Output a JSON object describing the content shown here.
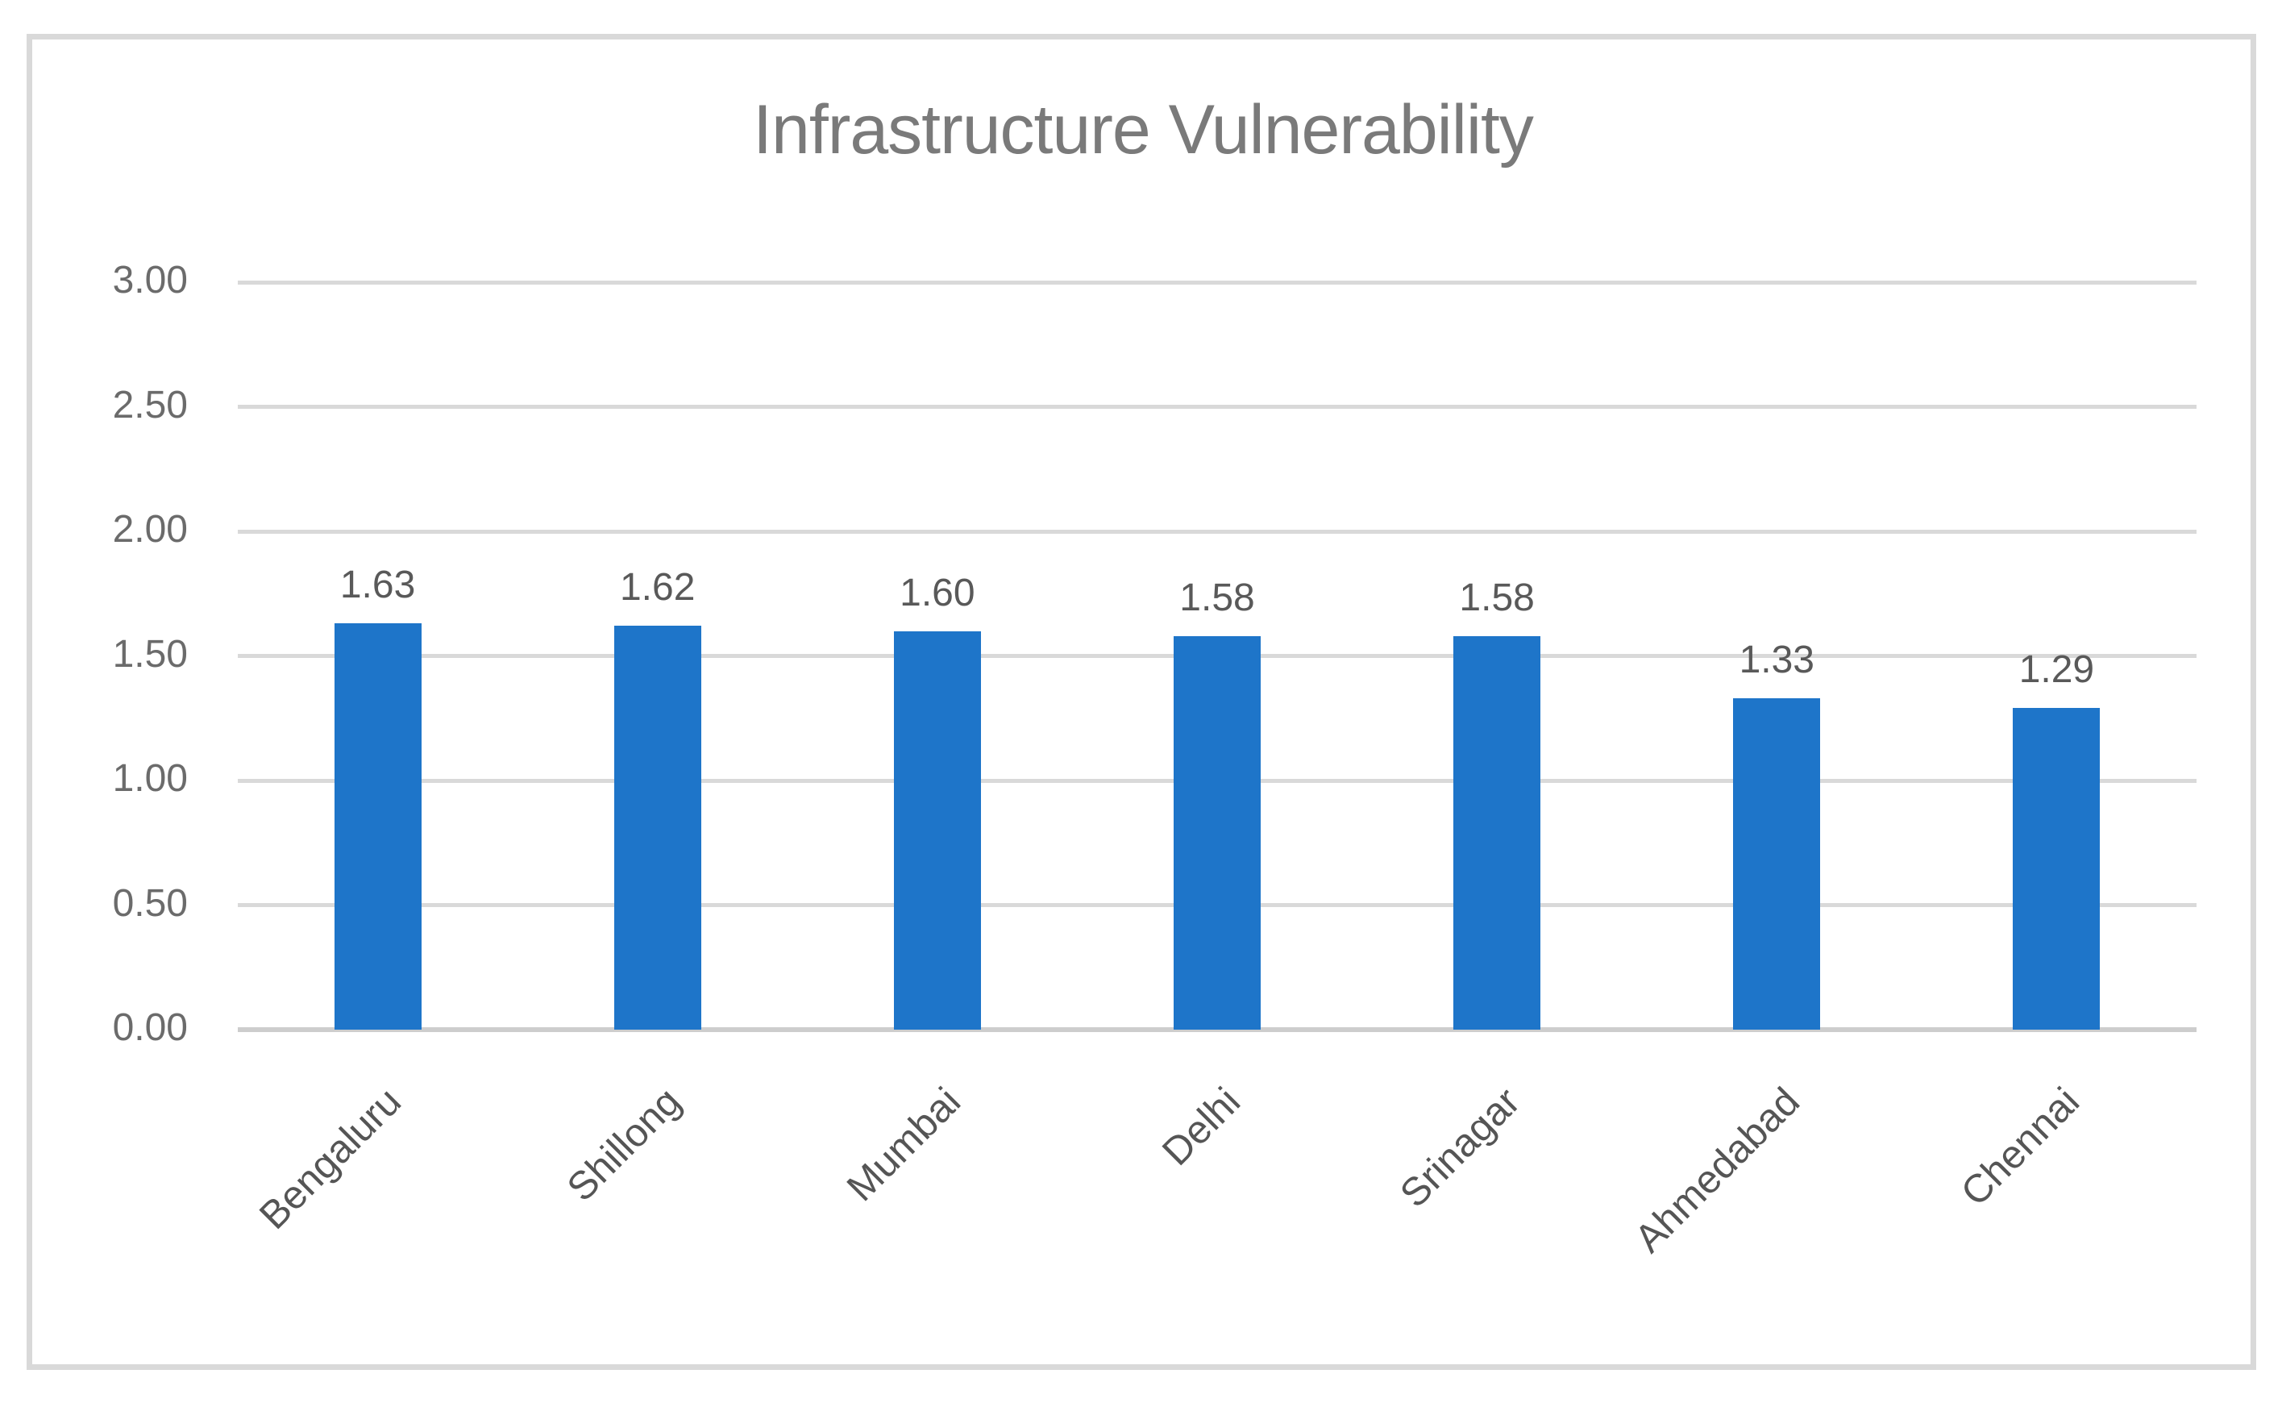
{
  "chart_data": {
    "type": "bar",
    "title": "Infrastructure Vulnerability",
    "categories": [
      "Bengaluru",
      "Shillong",
      "Mumbai",
      "Delhi",
      "Srinagar",
      "Ahmedabad",
      "Chennai"
    ],
    "values": [
      1.63,
      1.62,
      1.6,
      1.58,
      1.58,
      1.33,
      1.29
    ],
    "data_labels": [
      "1.63",
      "1.62",
      "1.60",
      "1.58",
      "1.58",
      "1.33",
      "1.29"
    ],
    "ylim": [
      0,
      3
    ],
    "ytick_step": 0.5,
    "ytick_labels": [
      "0.00",
      "0.50",
      "1.00",
      "1.50",
      "2.00",
      "2.50",
      "3.00"
    ],
    "xlabel": "",
    "ylabel": "",
    "grid": "on",
    "legend": "none",
    "colors": {
      "bar": "#1E75C9",
      "gridline": "#D9D9D9",
      "baseline": "#CDCDCD",
      "border": "#D9D9D9",
      "title": "#7A7A7A",
      "tick_label": "#6B6B6B",
      "data_label": "#595959",
      "category_label": "#555555"
    }
  }
}
